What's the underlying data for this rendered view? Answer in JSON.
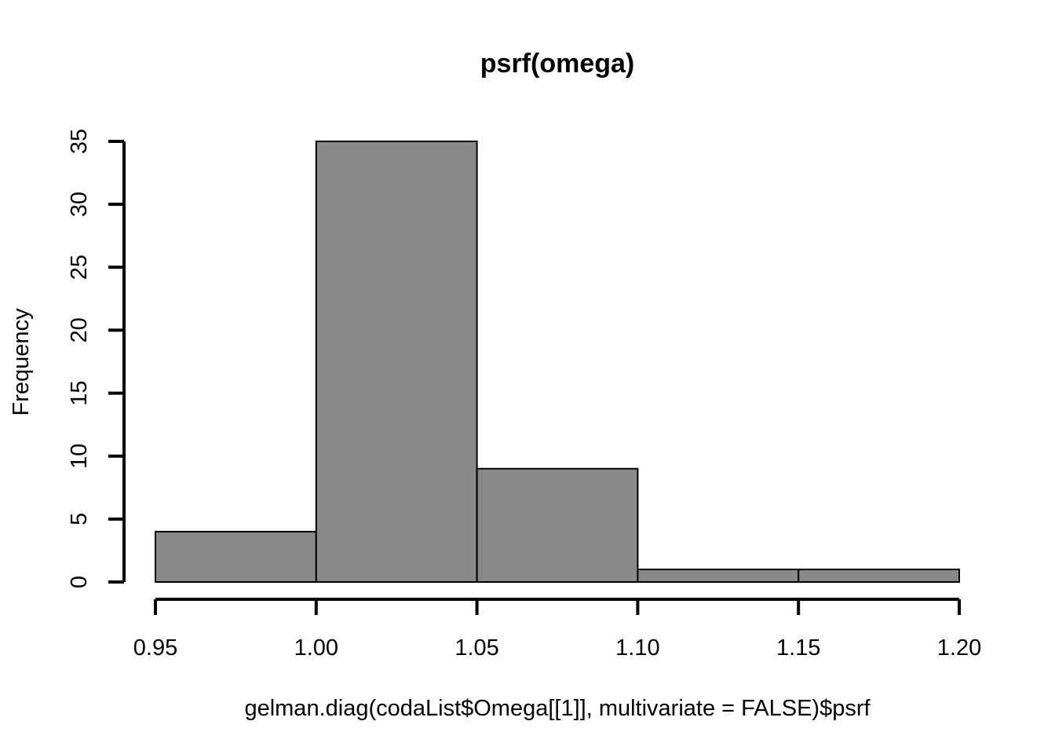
{
  "chart_data": {
    "type": "bar",
    "title": "psrf(omega)",
    "xlabel": "gelman.diag(codaList$Omega[[1]], multivariate = FALSE)$psrf",
    "ylabel": "Frequency",
    "bins": [
      {
        "from": 0.95,
        "to": 1.0,
        "value": 4
      },
      {
        "from": 1.0,
        "to": 1.05,
        "value": 35
      },
      {
        "from": 1.05,
        "to": 1.1,
        "value": 9
      },
      {
        "from": 1.1,
        "to": 1.15,
        "value": 1
      },
      {
        "from": 1.15,
        "to": 1.2,
        "value": 1
      }
    ],
    "xlim": [
      0.95,
      1.2
    ],
    "ylim": [
      0,
      35
    ],
    "x_ticks": [
      "0.95",
      "1.00",
      "1.05",
      "1.10",
      "1.15",
      "1.20"
    ],
    "y_ticks": [
      "0",
      "5",
      "10",
      "15",
      "20",
      "25",
      "30",
      "35"
    ],
    "bar_color": "#898989",
    "grid": false
  }
}
